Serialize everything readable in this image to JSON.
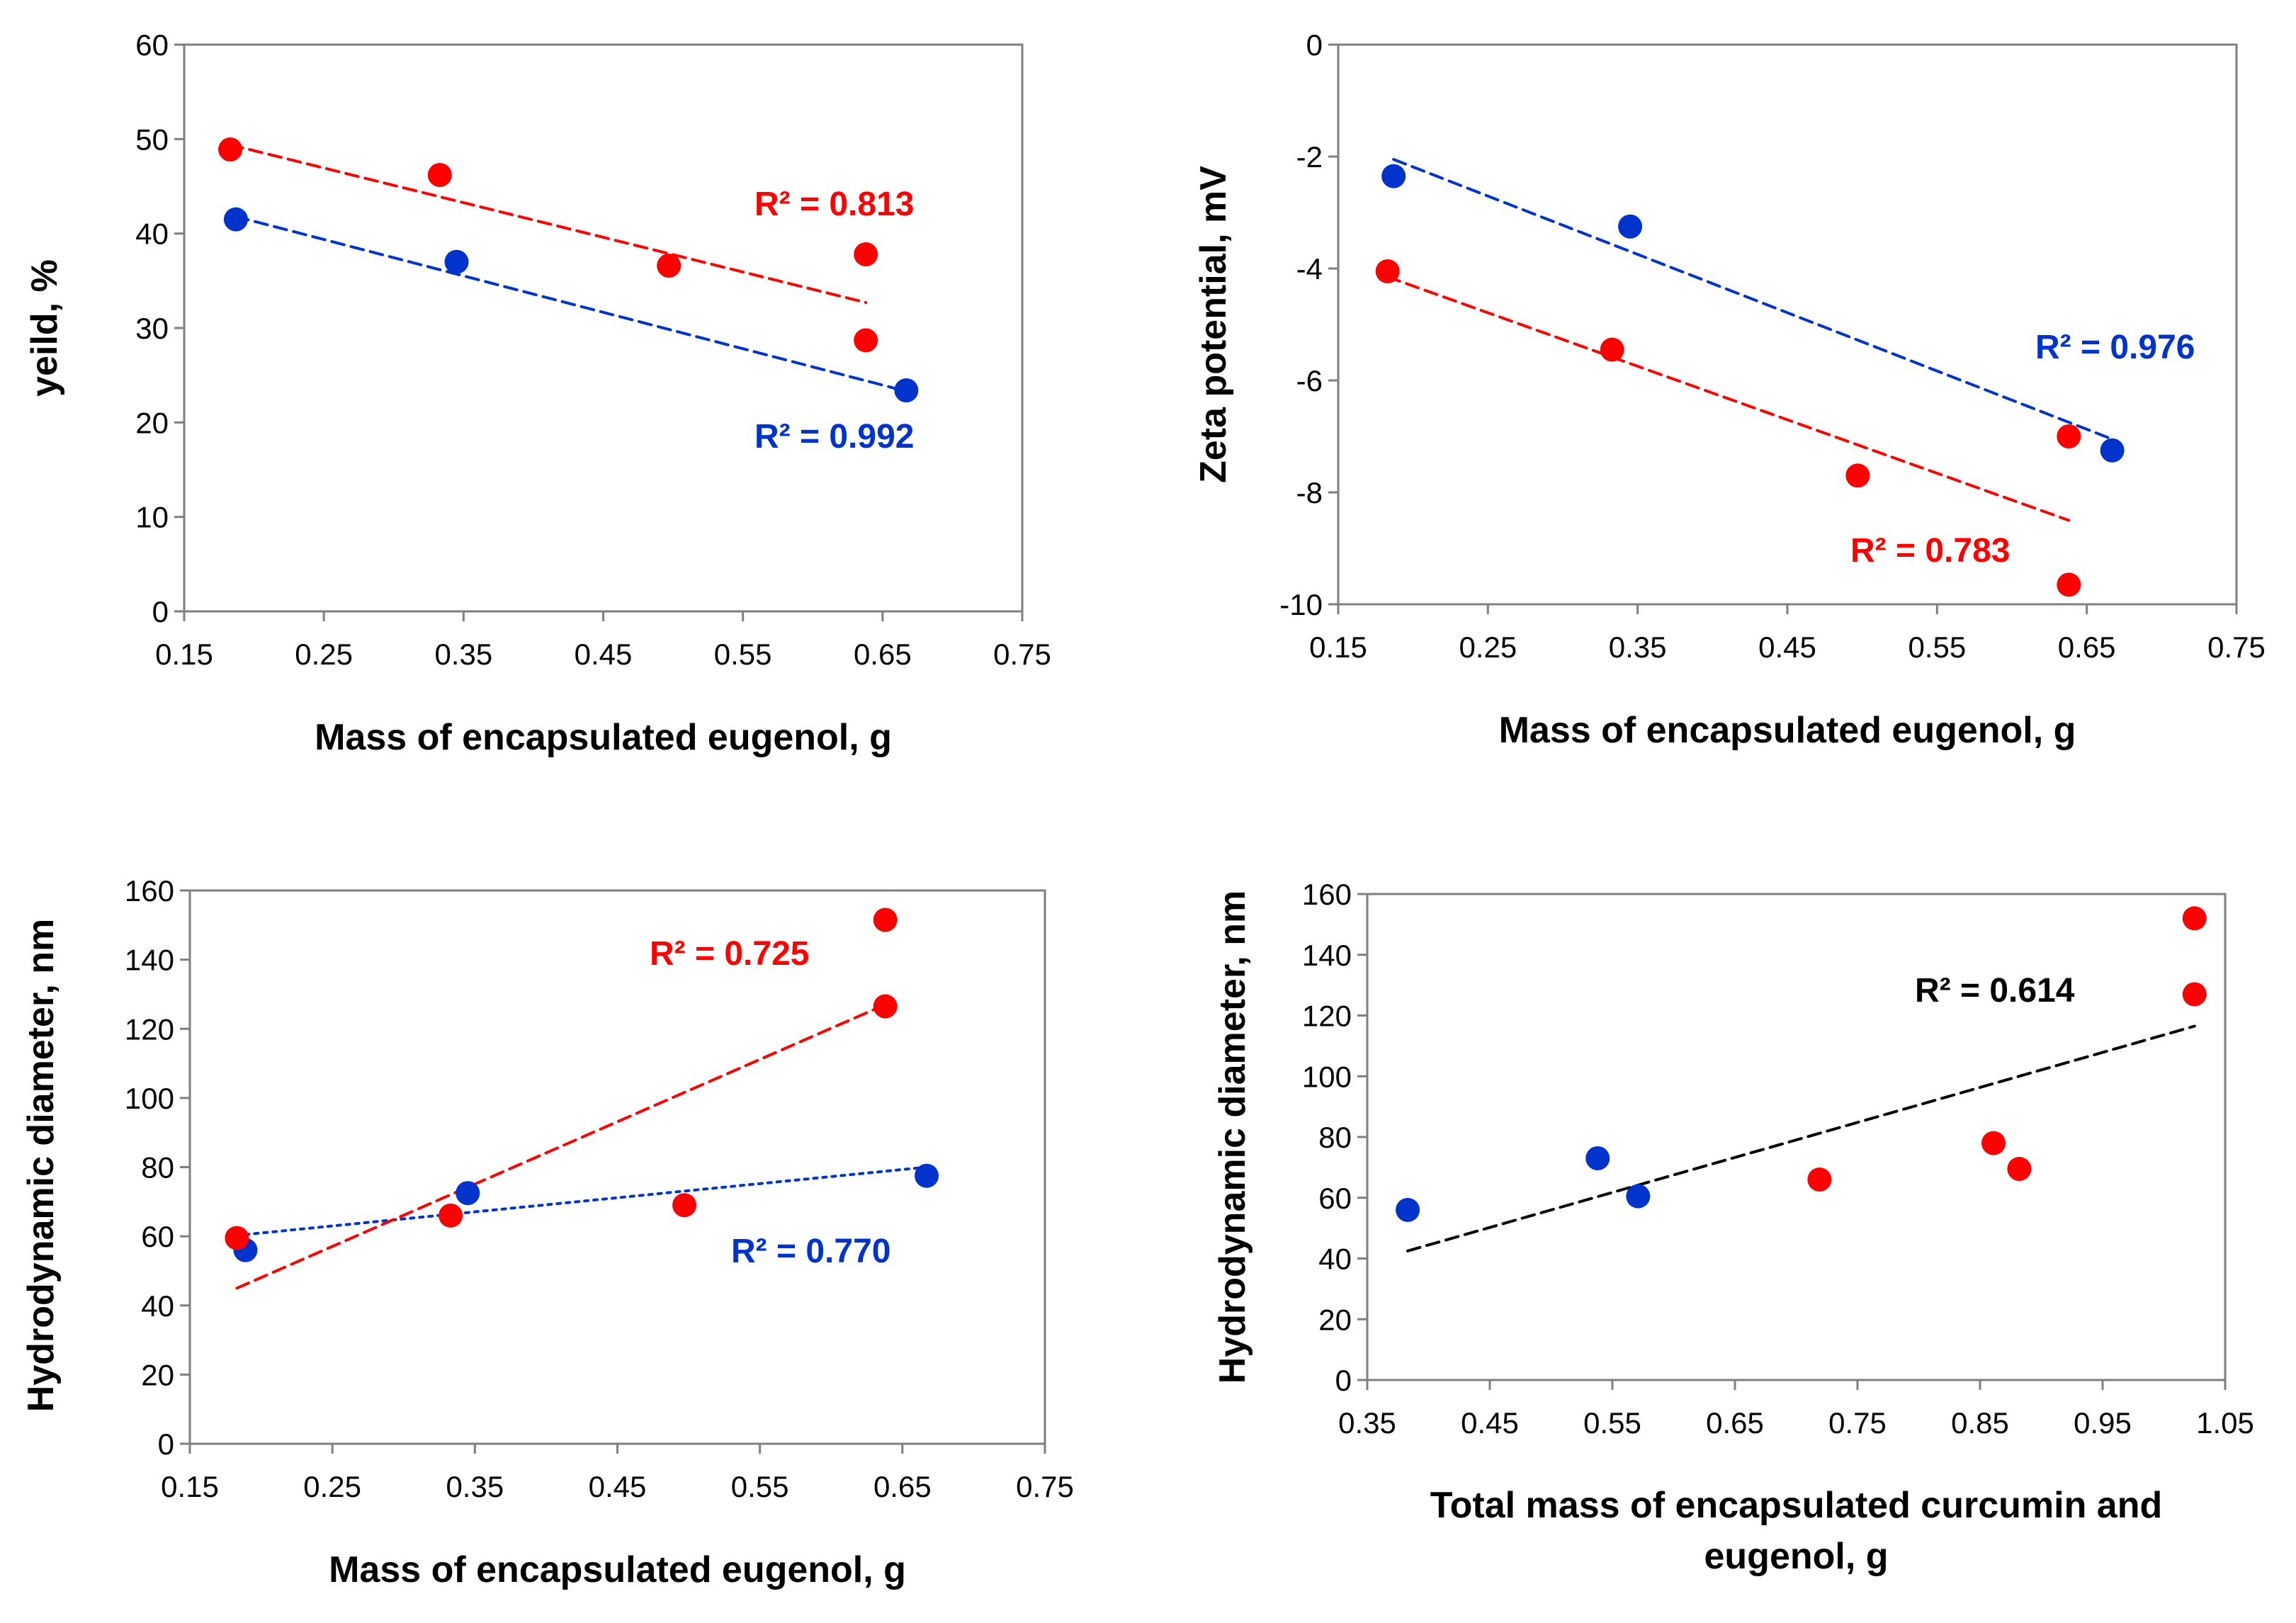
{
  "chart_data": [
    {
      "type": "scatter",
      "xlabel": "Mass of encapsulated eugenol, g",
      "ylabel": "yeild, %",
      "xlim": [
        0.15,
        0.75
      ],
      "ylim": [
        0,
        60
      ],
      "xticks": [
        "0.15",
        "0.25",
        "0.35",
        "0.45",
        "0.55",
        "0.65",
        "0.75"
      ],
      "yticks": [
        "0",
        "10",
        "20",
        "30",
        "40",
        "50",
        "60"
      ],
      "grid": false,
      "series": [
        {
          "name": "blue",
          "color": "#0033CC",
          "points": [
            [
              0.187,
              41.5
            ],
            [
              0.345,
              37.0
            ],
            [
              0.667,
              23.4
            ]
          ],
          "trend": {
            "style": "dashed",
            "from": [
              0.187,
              41.8
            ],
            "to": [
              0.667,
              23.3
            ]
          },
          "label": "R² = 0.992"
        },
        {
          "name": "red",
          "color": "#FF0000",
          "points": [
            [
              0.183,
              48.9
            ],
            [
              0.333,
              46.2
            ],
            [
              0.497,
              36.6
            ],
            [
              0.638,
              37.8
            ],
            [
              0.638,
              28.7
            ]
          ],
          "trend": {
            "style": "dashed",
            "from": [
              0.183,
              49.4
            ],
            "to": [
              0.638,
              32.7
            ]
          },
          "label": "R² = 0.813"
        }
      ]
    },
    {
      "type": "scatter",
      "xlabel": "Mass of encapsulated eugenol, g",
      "ylabel": "Zeta potential, mV",
      "xlim": [
        0.15,
        0.75
      ],
      "ylim": [
        -10,
        0
      ],
      "xticks": [
        "0.15",
        "0.25",
        "0.35",
        "0.45",
        "0.55",
        "0.65",
        "0.75"
      ],
      "yticks": [
        "-10",
        "-8",
        "-6",
        "-4",
        "-2",
        "0"
      ],
      "grid": false,
      "series": [
        {
          "name": "blue",
          "color": "#0033CC",
          "points": [
            [
              0.187,
              -2.35
            ],
            [
              0.345,
              -3.25
            ],
            [
              0.667,
              -7.25
            ]
          ],
          "trend": {
            "style": "dashed",
            "from": [
              0.187,
              -2.05
            ],
            "to": [
              0.667,
              -7.05
            ]
          },
          "label": "R² = 0.976"
        },
        {
          "name": "red",
          "color": "#FF0000",
          "points": [
            [
              0.183,
              -4.05
            ],
            [
              0.333,
              -5.45
            ],
            [
              0.497,
              -7.7
            ],
            [
              0.638,
              -7.0
            ],
            [
              0.638,
              -9.65
            ]
          ],
          "trend": {
            "style": "dashed",
            "from": [
              0.183,
              -4.15
            ],
            "to": [
              0.638,
              -8.5
            ]
          },
          "label": "R² = 0.783"
        }
      ]
    },
    {
      "type": "scatter",
      "xlabel": "Mass of encapsulated eugenol, g",
      "ylabel": "Hydrodynamic diameter, nm",
      "xlim": [
        0.15,
        0.75
      ],
      "ylim": [
        0,
        160
      ],
      "xticks": [
        "0.15",
        "0.25",
        "0.35",
        "0.45",
        "0.55",
        "0.65",
        "0.75"
      ],
      "yticks": [
        "0",
        "20",
        "40",
        "60",
        "80",
        "100",
        "120",
        "140",
        "160"
      ],
      "grid": false,
      "series": [
        {
          "name": "blue",
          "color": "#0033CC",
          "points": [
            [
              0.189,
              56.0
            ],
            [
              0.345,
              72.5
            ],
            [
              0.667,
              77.5
            ]
          ],
          "trend": {
            "style": "dotted",
            "from": [
              0.189,
              60.5
            ],
            "to": [
              0.667,
              80.0
            ]
          },
          "label": "R² = 0.770"
        },
        {
          "name": "red",
          "color": "#FF0000",
          "points": [
            [
              0.183,
              59.5
            ],
            [
              0.333,
              66.0
            ],
            [
              0.497,
              69.0
            ],
            [
              0.638,
              151.5
            ],
            [
              0.638,
              126.5
            ]
          ],
          "trend": {
            "style": "dashed",
            "from": [
              0.183,
              45.0
            ],
            "to": [
              0.638,
              127.0
            ]
          },
          "label": "R² = 0.725"
        }
      ]
    },
    {
      "type": "scatter",
      "xlabel": [
        "Total mass of encapsulated curcumin and",
        "eugenol, g"
      ],
      "ylabel": "Hydrodynamic diameter, nm",
      "xlim": [
        0.35,
        1.05
      ],
      "ylim": [
        0,
        160
      ],
      "xticks": [
        "0.35",
        "0.45",
        "0.55",
        "0.65",
        "0.75",
        "0.85",
        "0.95",
        "1.05"
      ],
      "yticks": [
        "0",
        "20",
        "40",
        "60",
        "80",
        "100",
        "120",
        "140",
        "160"
      ],
      "grid": false,
      "series": [
        {
          "name": "blue",
          "color": "#0033CC",
          "points": [
            [
              0.383,
              56.0
            ],
            [
              0.538,
              73.0
            ],
            [
              0.571,
              60.5
            ]
          ]
        },
        {
          "name": "red",
          "color": "#FF0000",
          "points": [
            [
              0.719,
              66.0
            ],
            [
              0.861,
              78.0
            ],
            [
              0.882,
              69.5
            ],
            [
              1.025,
              152.0
            ],
            [
              1.025,
              127.0
            ]
          ]
        },
        {
          "name": "all",
          "color": "#000000",
          "points": [],
          "trend": {
            "style": "dashed",
            "from": [
              0.383,
              42.5
            ],
            "to": [
              1.025,
              116.5
            ]
          },
          "label": "R² = 0.614"
        }
      ]
    }
  ]
}
